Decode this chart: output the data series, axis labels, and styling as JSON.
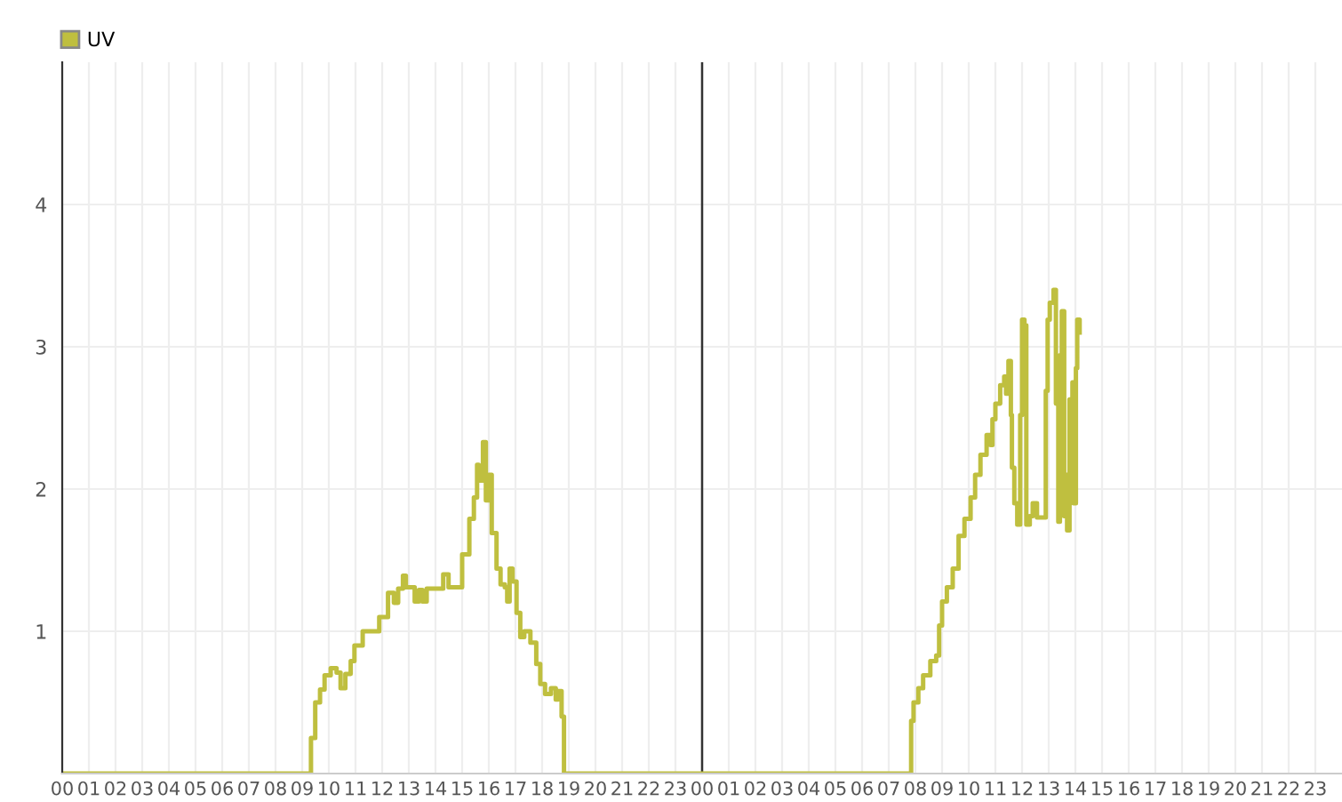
{
  "chart_data": {
    "type": "step",
    "xlim": [
      0,
      48
    ],
    "ylim": [
      0,
      5
    ],
    "yticks": [
      1,
      2,
      3,
      4
    ],
    "xticks": [
      {
        "value": 0,
        "label": "00"
      },
      {
        "value": 1,
        "label": "01"
      },
      {
        "value": 2,
        "label": "02"
      },
      {
        "value": 3,
        "label": "03"
      },
      {
        "value": 4,
        "label": "04"
      },
      {
        "value": 5,
        "label": "05"
      },
      {
        "value": 6,
        "label": "06"
      },
      {
        "value": 7,
        "label": "07"
      },
      {
        "value": 8,
        "label": "08"
      },
      {
        "value": 9,
        "label": "09"
      },
      {
        "value": 10,
        "label": "10"
      },
      {
        "value": 11,
        "label": "11"
      },
      {
        "value": 12,
        "label": "12"
      },
      {
        "value": 13,
        "label": "13"
      },
      {
        "value": 14,
        "label": "14"
      },
      {
        "value": 15,
        "label": "15"
      },
      {
        "value": 16,
        "label": "16"
      },
      {
        "value": 17,
        "label": "17"
      },
      {
        "value": 18,
        "label": "18"
      },
      {
        "value": 19,
        "label": "19"
      },
      {
        "value": 20,
        "label": "20"
      },
      {
        "value": 21,
        "label": "21"
      },
      {
        "value": 22,
        "label": "22"
      },
      {
        "value": 23,
        "label": "23"
      },
      {
        "value": 24,
        "label": "00"
      },
      {
        "value": 25,
        "label": "01"
      },
      {
        "value": 26,
        "label": "02"
      },
      {
        "value": 27,
        "label": "03"
      },
      {
        "value": 28,
        "label": "04"
      },
      {
        "value": 29,
        "label": "05"
      },
      {
        "value": 30,
        "label": "06"
      },
      {
        "value": 31,
        "label": "07"
      },
      {
        "value": 32,
        "label": "08"
      },
      {
        "value": 33,
        "label": "09"
      },
      {
        "value": 34,
        "label": "10"
      },
      {
        "value": 35,
        "label": "11"
      },
      {
        "value": 36,
        "label": "12"
      },
      {
        "value": 37,
        "label": "13"
      },
      {
        "value": 38,
        "label": "14"
      },
      {
        "value": 39,
        "label": "15"
      },
      {
        "value": 40,
        "label": "16"
      },
      {
        "value": 41,
        "label": "17"
      },
      {
        "value": 42,
        "label": "18"
      },
      {
        "value": 43,
        "label": "19"
      },
      {
        "value": 44,
        "label": "20"
      },
      {
        "value": 45,
        "label": "21"
      },
      {
        "value": 46,
        "label": "22"
      },
      {
        "value": 47,
        "label": "23"
      }
    ],
    "grid": true,
    "legend": "top left",
    "marker": "none",
    "ref_lines": [
      {
        "axis": "x",
        "value": 24,
        "color": "#333333"
      }
    ],
    "series": [
      {
        "name": "UV",
        "color": "#bfbf3f",
        "x": [
          0,
          9.27,
          9.33,
          9.49,
          9.67,
          9.84,
          10.07,
          10.29,
          10.44,
          10.62,
          10.82,
          10.96,
          11.27,
          11.71,
          11.89,
          12.22,
          12.44,
          12.6,
          12.78,
          12.89,
          13.04,
          13.22,
          13.38,
          13.51,
          13.67,
          14.11,
          14.29,
          14.49,
          14.78,
          15.0,
          15.27,
          15.44,
          15.56,
          15.62,
          15.78,
          15.89,
          16.0,
          16.11,
          16.29,
          16.44,
          16.6,
          16.69,
          16.78,
          16.89,
          17.04,
          17.18,
          17.33,
          17.56,
          17.78,
          17.93,
          18.11,
          18.33,
          18.51,
          18.6,
          18.73,
          18.82,
          31.78,
          31.84,
          31.93,
          32.11,
          32.29,
          32.56,
          32.78,
          32.89,
          33.0,
          33.18,
          33.4,
          33.62,
          33.84,
          34.07,
          34.24,
          34.44,
          34.67,
          34.82,
          34.89,
          35.0,
          35.18,
          35.33,
          35.4,
          35.49,
          35.58,
          35.62,
          35.71,
          35.82,
          35.93,
          36.0,
          36.09,
          36.16,
          36.29,
          36.4,
          36.56,
          36.82,
          36.89,
          36.96,
          37.04,
          37.18,
          37.27,
          37.36,
          37.42,
          37.49,
          37.58,
          37.62,
          37.69,
          37.78,
          37.89,
          37.93,
          38.02,
          38.07,
          38.16
        ],
        "values": [
          0,
          0,
          0.25,
          0.5,
          0.59,
          0.69,
          0.74,
          0.71,
          0.6,
          0.7,
          0.79,
          0.9,
          1.0,
          1.0,
          1.1,
          1.27,
          1.2,
          1.3,
          1.39,
          1.31,
          1.31,
          1.21,
          1.29,
          1.21,
          1.3,
          1.3,
          1.4,
          1.31,
          1.31,
          1.54,
          1.79,
          1.94,
          2.17,
          2.06,
          2.33,
          1.92,
          2.1,
          1.69,
          1.44,
          1.33,
          1.31,
          1.21,
          1.44,
          1.35,
          1.13,
          0.96,
          1.0,
          0.92,
          0.77,
          0.63,
          0.56,
          0.6,
          0.52,
          0.58,
          0.4,
          0,
          0,
          0.37,
          0.5,
          0.6,
          0.69,
          0.79,
          0.83,
          1.04,
          1.21,
          1.31,
          1.44,
          1.67,
          1.79,
          1.94,
          2.1,
          2.24,
          2.38,
          2.31,
          2.49,
          2.6,
          2.73,
          2.79,
          2.67,
          2.9,
          2.52,
          2.15,
          1.9,
          1.75,
          2.52,
          3.19,
          3.15,
          1.75,
          1.81,
          1.9,
          1.8,
          1.8,
          2.69,
          3.19,
          3.31,
          3.4,
          2.6,
          1.77,
          2.94,
          3.25,
          1.81,
          2.1,
          1.71,
          2.63,
          2.75,
          1.9,
          2.85,
          3.19,
          3.1
        ]
      }
    ]
  }
}
